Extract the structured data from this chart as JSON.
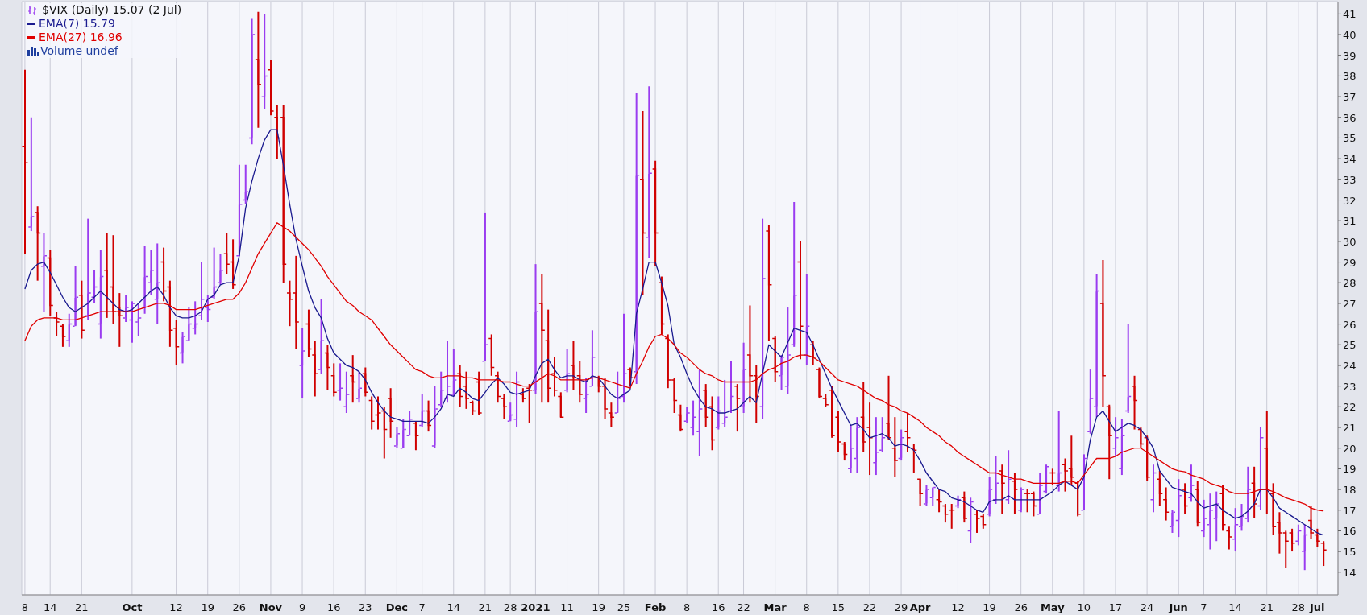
{
  "chart_data": {
    "type": "candlestick",
    "title": "$VIX (Daily) 15.07 (2 Jul)",
    "annotations": [
      "Volume undef"
    ],
    "legend": "top left",
    "grid": true,
    "ylim": [
      12.9,
      41.6
    ],
    "yticks": [
      14,
      15,
      16,
      17,
      18,
      19,
      20,
      21,
      22,
      23,
      24,
      25,
      26,
      27,
      28,
      29,
      30,
      31,
      32,
      33,
      34,
      35,
      36,
      37,
      38,
      39,
      40,
      41
    ],
    "categories": [
      "8",
      null,
      null,
      null,
      "14",
      null,
      null,
      null,
      null,
      "21",
      null,
      null,
      null,
      null,
      null,
      null,
      null,
      "Oct",
      null,
      null,
      null,
      null,
      null,
      null,
      "12",
      null,
      null,
      null,
      null,
      "19",
      null,
      null,
      null,
      null,
      "26",
      null,
      null,
      null,
      null,
      "Nov",
      null,
      null,
      null,
      null,
      "9",
      null,
      null,
      null,
      null,
      "16",
      null,
      null,
      null,
      null,
      "23",
      null,
      null,
      null,
      null,
      "Dec",
      null,
      null,
      null,
      "7",
      null,
      null,
      null,
      null,
      "14",
      null,
      null,
      null,
      null,
      "21",
      null,
      null,
      null,
      "28",
      null,
      null,
      null,
      "2021",
      null,
      null,
      null,
      null,
      "11",
      null,
      null,
      null,
      null,
      "19",
      null,
      null,
      null,
      "25",
      null,
      null,
      null,
      null,
      "Feb",
      null,
      null,
      null,
      null,
      "8",
      null,
      null,
      null,
      null,
      "16",
      null,
      null,
      null,
      "22",
      null,
      null,
      null,
      null,
      "Mar",
      null,
      null,
      null,
      null,
      "8",
      null,
      null,
      null,
      null,
      "15",
      null,
      null,
      null,
      null,
      "22",
      null,
      null,
      null,
      null,
      "29",
      null,
      null,
      "Apr",
      null,
      null,
      null,
      null,
      null,
      "12",
      null,
      null,
      null,
      null,
      "19",
      null,
      null,
      null,
      null,
      "26",
      null,
      null,
      null,
      null,
      "May",
      null,
      null,
      null,
      null,
      "10",
      null,
      null,
      null,
      null,
      "17",
      null,
      null,
      null,
      null,
      "24",
      null,
      null,
      null,
      null,
      "Jun",
      null,
      null,
      null,
      "7",
      null,
      null,
      null,
      null,
      "14",
      null,
      null,
      null,
      null,
      "21",
      null,
      null,
      null,
      null,
      "28",
      null,
      null,
      "Jul",
      null
    ],
    "ohlc": [
      [
        34.6,
        38.3,
        29.4,
        33.8
      ],
      [
        30.7,
        36.0,
        30.5,
        31.2
      ],
      [
        31.4,
        31.7,
        28.1,
        30.4
      ],
      [
        28.8,
        30.4,
        26.6,
        29.3
      ],
      [
        29.2,
        29.6,
        26.4,
        26.9
      ],
      [
        26.3,
        26.6,
        25.4,
        26.1
      ],
      [
        25.9,
        26.0,
        24.9,
        25.4
      ],
      [
        25.2,
        26.5,
        24.9,
        26.0
      ],
      [
        25.9,
        28.8,
        25.9,
        27.3
      ],
      [
        27.4,
        28.1,
        25.3,
        25.7
      ],
      [
        26.4,
        31.1,
        26.2,
        27.5
      ],
      [
        27.3,
        28.6,
        27.0,
        27.8
      ],
      [
        26.0,
        29.6,
        25.3,
        28.3
      ],
      [
        28.6,
        30.4,
        26.3,
        27.2
      ],
      [
        27.8,
        30.3,
        26.0,
        26.6
      ],
      [
        26.8,
        27.5,
        24.9,
        26.4
      ],
      [
        26.3,
        27.4,
        26.1,
        26.8
      ],
      [
        26.2,
        27.1,
        25.1,
        27.0
      ],
      [
        26.1,
        27.0,
        25.4,
        26.3
      ],
      [
        26.8,
        29.8,
        26.5,
        28.3
      ],
      [
        28.0,
        29.6,
        27.4,
        28.6
      ],
      [
        27.2,
        29.9,
        26.0,
        28.0
      ],
      [
        29.0,
        29.7,
        27.1,
        27.6
      ],
      [
        27.8,
        28.1,
        24.9,
        25.7
      ],
      [
        25.8,
        26.2,
        24.0,
        24.9
      ],
      [
        24.6,
        25.6,
        24.1,
        25.4
      ],
      [
        25.2,
        26.8,
        25.2,
        26.0
      ],
      [
        25.8,
        27.1,
        25.5,
        26.0
      ],
      [
        26.4,
        29.0,
        26.2,
        27.2
      ],
      [
        26.8,
        27.4,
        26.1,
        26.7
      ],
      [
        27.3,
        29.7,
        27.2,
        27.8
      ],
      [
        28.0,
        29.4,
        27.9,
        28.6
      ],
      [
        29.4,
        30.4,
        28.4,
        28.9
      ],
      [
        29.0,
        30.1,
        27.7,
        27.9
      ],
      [
        29.3,
        33.7,
        29.3,
        31.8
      ],
      [
        32.0,
        33.7,
        31.8,
        32.4
      ],
      [
        35.0,
        40.8,
        34.7,
        40.0
      ],
      [
        38.8,
        41.1,
        35.5,
        37.6
      ],
      [
        37.0,
        41.0,
        36.4,
        38.0
      ],
      [
        38.3,
        38.8,
        36.1,
        36.3
      ],
      [
        36.0,
        36.6,
        34.0,
        35.0
      ],
      [
        36.0,
        36.6,
        28.0,
        28.9
      ],
      [
        27.5,
        28.1,
        25.9,
        27.2
      ],
      [
        27.5,
        29.3,
        24.8,
        26.1
      ],
      [
        24.0,
        25.8,
        22.4,
        24.7
      ],
      [
        26.0,
        26.7,
        24.4,
        24.8
      ],
      [
        24.5,
        25.2,
        22.5,
        23.6
      ],
      [
        23.8,
        27.2,
        23.6,
        25.2
      ],
      [
        24.6,
        25.0,
        22.8,
        23.9
      ],
      [
        23.5,
        24.1,
        22.5,
        22.7
      ],
      [
        22.8,
        24.1,
        22.3,
        22.9
      ],
      [
        22.0,
        23.7,
        21.7,
        22.6
      ],
      [
        23.5,
        24.5,
        22.2,
        23.2
      ],
      [
        22.4,
        23.7,
        22.2,
        22.9
      ],
      [
        23.6,
        23.9,
        22.5,
        22.7
      ],
      [
        22.3,
        22.5,
        20.9,
        21.3
      ],
      [
        21.6,
        22.5,
        20.9,
        21.7
      ],
      [
        21.8,
        22.0,
        19.5,
        20.9
      ],
      [
        22.4,
        22.9,
        20.5,
        21.3
      ],
      [
        20.1,
        21.0,
        20.0,
        20.7
      ],
      [
        20.0,
        21.4,
        20.0,
        20.9
      ],
      [
        20.6,
        21.8,
        20.6,
        21.4
      ],
      [
        21.2,
        21.3,
        19.9,
        20.6
      ],
      [
        21.1,
        22.6,
        21.0,
        21.8
      ],
      [
        21.8,
        22.3,
        20.8,
        21.1
      ],
      [
        20.1,
        23.0,
        20.0,
        21.9
      ],
      [
        22.1,
        23.7,
        22.0,
        22.8
      ],
      [
        22.4,
        25.2,
        22.2,
        23.0
      ],
      [
        22.6,
        24.8,
        22.5,
        23.3
      ],
      [
        23.6,
        24.0,
        22.0,
        22.5
      ],
      [
        23.0,
        23.7,
        21.9,
        22.4
      ],
      [
        22.2,
        22.3,
        21.6,
        21.8
      ],
      [
        23.2,
        23.7,
        21.6,
        21.7
      ],
      [
        24.2,
        31.4,
        24.2,
        25.0
      ],
      [
        25.3,
        25.5,
        23.5,
        23.9
      ],
      [
        23.5,
        23.7,
        22.2,
        22.5
      ],
      [
        22.4,
        22.6,
        21.4,
        22.0
      ],
      [
        21.3,
        22.2,
        21.3,
        21.6
      ],
      [
        21.4,
        23.7,
        21.0,
        23.2
      ],
      [
        22.6,
        22.9,
        22.2,
        22.4
      ],
      [
        22.9,
        23.1,
        21.2,
        22.8
      ],
      [
        22.8,
        28.9,
        22.6,
        26.6
      ],
      [
        27.0,
        28.4,
        22.2,
        25.7
      ],
      [
        25.2,
        26.7,
        22.2,
        22.9
      ],
      [
        23.6,
        24.4,
        22.5,
        22.8
      ],
      [
        22.5,
        22.7,
        21.5,
        21.5
      ],
      [
        22.8,
        24.8,
        22.7,
        23.6
      ],
      [
        24.0,
        25.2,
        22.8,
        23.4
      ],
      [
        23.5,
        24.2,
        22.2,
        22.6
      ],
      [
        22.4,
        23.4,
        21.7,
        22.6
      ],
      [
        23.0,
        25.7,
        23.0,
        24.4
      ],
      [
        23.4,
        23.5,
        22.7,
        23.0
      ],
      [
        23.0,
        23.4,
        21.4,
        21.9
      ],
      [
        21.7,
        22.2,
        21.0,
        21.5
      ],
      [
        21.7,
        23.7,
        21.7,
        22.4
      ],
      [
        22.5,
        26.5,
        22.2,
        23.6
      ],
      [
        23.8,
        23.9,
        23.0,
        23.4
      ],
      [
        23.7,
        37.2,
        23.1,
        33.2
      ],
      [
        33.0,
        36.3,
        27.4,
        30.4
      ],
      [
        30.2,
        37.5,
        29.2,
        33.3
      ],
      [
        33.5,
        33.9,
        28.8,
        30.4
      ],
      [
        28.0,
        28.3,
        25.5,
        26.0
      ],
      [
        25.3,
        25.5,
        22.9,
        23.3
      ],
      [
        23.3,
        23.4,
        21.7,
        22.3
      ],
      [
        21.6,
        22.1,
        20.8,
        20.9
      ],
      [
        21.3,
        22.0,
        21.2,
        21.7
      ],
      [
        21.0,
        22.3,
        20.6,
        21.5
      ],
      [
        20.8,
        23.8,
        19.6,
        21.9
      ],
      [
        22.8,
        23.1,
        21.0,
        21.5
      ],
      [
        22.0,
        22.5,
        19.9,
        20.4
      ],
      [
        21.0,
        22.5,
        20.9,
        21.8
      ],
      [
        21.2,
        23.3,
        21.0,
        21.5
      ],
      [
        21.8,
        24.2,
        21.7,
        22.5
      ],
      [
        23.0,
        23.1,
        20.8,
        22.4
      ],
      [
        22.0,
        25.1,
        21.7,
        23.8
      ],
      [
        24.5,
        26.9,
        22.2,
        23.5
      ],
      [
        23.5,
        24.0,
        21.2,
        22.5
      ],
      [
        22.0,
        31.1,
        21.4,
        28.2
      ],
      [
        30.5,
        30.8,
        25.2,
        27.9
      ],
      [
        25.3,
        25.4,
        23.2,
        23.7
      ],
      [
        23.5,
        24.5,
        22.8,
        24.4
      ],
      [
        23.0,
        26.8,
        22.6,
        24.5
      ],
      [
        25.0,
        31.9,
        24.9,
        27.4
      ],
      [
        29.0,
        30.0,
        24.3,
        25.9
      ],
      [
        24.5,
        28.4,
        24.0,
        25.9
      ],
      [
        25.0,
        25.2,
        24.0,
        24.4
      ],
      [
        23.8,
        23.9,
        22.4,
        22.5
      ],
      [
        22.4,
        22.6,
        22.0,
        22.1
      ],
      [
        22.8,
        23.0,
        20.5,
        20.6
      ],
      [
        21.5,
        21.8,
        19.8,
        20.3
      ],
      [
        20.2,
        20.3,
        19.4,
        19.7
      ],
      [
        19.0,
        21.1,
        18.8,
        20.0
      ],
      [
        19.5,
        21.5,
        18.8,
        21.0
      ],
      [
        21.5,
        23.2,
        19.8,
        20.3
      ],
      [
        21.0,
        22.2,
        18.7,
        20.5
      ],
      [
        19.3,
        21.5,
        18.7,
        19.8
      ],
      [
        19.9,
        21.5,
        19.8,
        20.5
      ],
      [
        21.2,
        23.5,
        20.4,
        20.5
      ],
      [
        20.0,
        21.5,
        18.6,
        19.4
      ],
      [
        19.5,
        20.9,
        19.4,
        20.5
      ],
      [
        20.8,
        21.7,
        19.8,
        20.5
      ],
      [
        20.0,
        20.2,
        18.8,
        19.9
      ],
      [
        18.5,
        18.5,
        17.2,
        17.8
      ],
      [
        17.3,
        18.2,
        17.2,
        18.0
      ],
      [
        17.6,
        18.1,
        17.2,
        18.1
      ],
      [
        17.5,
        18.0,
        16.9,
        17.4
      ],
      [
        17.2,
        17.3,
        16.4,
        16.8
      ],
      [
        17.0,
        17.3,
        16.1,
        17.0
      ],
      [
        17.2,
        17.7,
        17.1,
        17.5
      ],
      [
        17.6,
        17.9,
        16.4,
        16.6
      ],
      [
        16.0,
        17.6,
        15.4,
        17.4
      ],
      [
        16.8,
        17.0,
        15.9,
        16.6
      ],
      [
        16.7,
        16.8,
        16.1,
        16.3
      ],
      [
        16.8,
        18.6,
        16.7,
        18.0
      ],
      [
        17.5,
        19.6,
        17.3,
        18.3
      ],
      [
        18.9,
        19.2,
        16.8,
        18.3
      ],
      [
        17.5,
        19.9,
        17.3,
        18.5
      ],
      [
        18.4,
        18.8,
        16.8,
        18.0
      ],
      [
        17.0,
        18.1,
        16.9,
        18.0
      ],
      [
        17.8,
        18.0,
        16.9,
        17.8
      ],
      [
        17.8,
        17.9,
        16.7,
        17.2
      ],
      [
        16.8,
        18.8,
        16.8,
        18.2
      ],
      [
        17.9,
        19.2,
        17.8,
        19.1
      ],
      [
        18.8,
        19.0,
        18.2,
        18.8
      ],
      [
        18.2,
        21.8,
        17.9,
        18.8
      ],
      [
        19.2,
        19.5,
        17.9,
        18.9
      ],
      [
        19.0,
        20.6,
        18.2,
        18.6
      ],
      [
        18.3,
        18.4,
        16.7,
        16.8
      ],
      [
        17.0,
        19.7,
        17.0,
        19.5
      ],
      [
        20.8,
        23.8,
        20.7,
        22.4
      ],
      [
        22.0,
        28.4,
        21.5,
        27.6
      ],
      [
        27.0,
        29.1,
        22.0,
        23.5
      ],
      [
        22.0,
        22.1,
        18.5,
        20.6
      ],
      [
        20.0,
        21.5,
        19.6,
        20.5
      ],
      [
        19.0,
        21.4,
        18.7,
        20.6
      ],
      [
        21.8,
        26.0,
        21.7,
        22.5
      ],
      [
        23.0,
        23.5,
        20.9,
        22.3
      ],
      [
        20.9,
        21.0,
        20.0,
        20.2
      ],
      [
        20.5,
        20.6,
        18.4,
        18.6
      ],
      [
        17.5,
        19.2,
        16.9,
        18.8
      ],
      [
        18.5,
        18.9,
        17.2,
        17.8
      ],
      [
        17.5,
        18.1,
        16.5,
        16.9
      ],
      [
        16.2,
        17.0,
        15.9,
        16.9
      ],
      [
        16.5,
        18.5,
        15.7,
        17.7
      ],
      [
        18.0,
        18.3,
        16.8,
        17.2
      ],
      [
        17.6,
        19.2,
        17.4,
        18.2
      ],
      [
        18.0,
        18.4,
        16.2,
        16.4
      ],
      [
        16.0,
        17.5,
        15.7,
        16.6
      ],
      [
        16.3,
        17.8,
        15.1,
        17.0
      ],
      [
        16.6,
        17.9,
        15.5,
        17.3
      ],
      [
        17.8,
        18.2,
        16.0,
        16.3
      ],
      [
        16.0,
        16.2,
        15.1,
        15.7
      ],
      [
        15.6,
        17.1,
        15.0,
        16.3
      ],
      [
        16.2,
        17.3,
        16.0,
        16.7
      ],
      [
        16.6,
        19.1,
        16.4,
        18.0
      ],
      [
        18.3,
        19.1,
        16.6,
        17.3
      ],
      [
        17.2,
        21.0,
        17.0,
        20.5
      ],
      [
        20.0,
        21.8,
        16.8,
        18.0
      ],
      [
        17.8,
        18.3,
        15.8,
        16.2
      ],
      [
        16.4,
        16.9,
        14.9,
        15.9
      ],
      [
        15.9,
        16.0,
        14.2,
        15.5
      ],
      [
        15.9,
        16.1,
        15.0,
        15.4
      ],
      [
        15.5,
        16.3,
        15.3,
        16.0
      ],
      [
        15.0,
        16.3,
        14.1,
        15.8
      ],
      [
        16.5,
        17.2,
        15.6,
        15.9
      ],
      [
        15.8,
        16.1,
        15.2,
        15.5
      ],
      [
        15.4,
        15.5,
        14.3,
        15.07
      ]
    ],
    "colors": [
      "#d00000",
      "#9a3cf0",
      "#d00000",
      "#9a3cf0",
      "#d00000",
      "#d00000",
      "#d00000",
      "#9a3cf0",
      "#9a3cf0",
      "#d00000",
      "#9a3cf0",
      "#9a3cf0",
      "#9a3cf0",
      "#d00000",
      "#d00000",
      "#d00000",
      "#9a3cf0",
      "#9a3cf0",
      "#9a3cf0",
      "#9a3cf0",
      "#9a3cf0",
      "#9a3cf0",
      "#d00000",
      "#d00000",
      "#d00000",
      "#9a3cf0",
      "#9a3cf0",
      "#9a3cf0",
      "#9a3cf0",
      "#9a3cf0",
      "#9a3cf0",
      "#9a3cf0",
      "#d00000",
      "#d00000",
      "#9a3cf0",
      "#9a3cf0",
      "#9a3cf0",
      "#d00000",
      "#9a3cf0",
      "#d00000",
      "#d00000",
      "#d00000",
      "#d00000",
      "#d00000",
      "#9a3cf0",
      "#d00000",
      "#d00000",
      "#9a3cf0",
      "#d00000",
      "#d00000",
      "#9a3cf0",
      "#9a3cf0",
      "#d00000",
      "#9a3cf0",
      "#d00000",
      "#d00000",
      "#d00000",
      "#d00000",
      "#d00000",
      "#9a3cf0",
      "#9a3cf0",
      "#9a3cf0",
      "#d00000",
      "#9a3cf0",
      "#d00000",
      "#9a3cf0",
      "#9a3cf0",
      "#9a3cf0",
      "#9a3cf0",
      "#d00000",
      "#d00000",
      "#d00000",
      "#d00000",
      "#9a3cf0",
      "#d00000",
      "#d00000",
      "#d00000",
      "#9a3cf0",
      "#9a3cf0",
      "#d00000",
      "#d00000",
      "#9a3cf0",
      "#d00000",
      "#d00000",
      "#d00000",
      "#d00000",
      "#9a3cf0",
      "#d00000",
      "#d00000",
      "#9a3cf0",
      "#9a3cf0",
      "#d00000",
      "#d00000",
      "#d00000",
      "#9a3cf0",
      "#9a3cf0",
      "#d00000",
      "#9a3cf0",
      "#d00000",
      "#9a3cf0",
      "#d00000",
      "#d00000",
      "#d00000",
      "#d00000",
      "#d00000",
      "#9a3cf0",
      "#9a3cf0",
      "#9a3cf0",
      "#d00000",
      "#d00000",
      "#9a3cf0",
      "#9a3cf0",
      "#9a3cf0",
      "#d00000",
      "#9a3cf0",
      "#d00000",
      "#d00000",
      "#9a3cf0",
      "#d00000",
      "#d00000",
      "#9a3cf0",
      "#9a3cf0",
      "#9a3cf0",
      "#d00000",
      "#9a3cf0",
      "#d00000",
      "#d00000",
      "#d00000",
      "#d00000",
      "#d00000",
      "#d00000",
      "#9a3cf0",
      "#9a3cf0",
      "#d00000",
      "#d00000",
      "#9a3cf0",
      "#9a3cf0",
      "#d00000",
      "#d00000",
      "#9a3cf0",
      "#d00000",
      "#d00000",
      "#d00000",
      "#9a3cf0",
      "#9a3cf0",
      "#d00000",
      "#d00000",
      "#d00000",
      "#9a3cf0",
      "#d00000",
      "#9a3cf0",
      "#d00000",
      "#d00000",
      "#9a3cf0",
      "#9a3cf0",
      "#d00000",
      "#9a3cf0",
      "#d00000",
      "#9a3cf0",
      "#d00000",
      "#d00000",
      "#9a3cf0",
      "#9a3cf0",
      "#d00000",
      "#9a3cf0",
      "#d00000",
      "#d00000",
      "#d00000",
      "#9a3cf0",
      "#9a3cf0",
      "#9a3cf0",
      "#d00000",
      "#d00000",
      "#9a3cf0",
      "#9a3cf0",
      "#9a3cf0",
      "#d00000",
      "#d00000",
      "#d00000",
      "#9a3cf0",
      "#d00000",
      "#d00000",
      "#9a3cf0",
      "#9a3cf0",
      "#d00000",
      "#9a3cf0",
      "#d00000",
      "#9a3cf0",
      "#9a3cf0",
      "#9a3cf0",
      "#d00000",
      "#d00000",
      "#9a3cf0",
      "#9a3cf0",
      "#9a3cf0",
      "#d00000",
      "#9a3cf0",
      "#d00000",
      "#d00000",
      "#d00000",
      "#d00000",
      "#d00000",
      "#9a3cf0",
      "#9a3cf0",
      "#d00000",
      "#d00000",
      "#d00000"
    ],
    "series": [
      {
        "type": "line",
        "name": "EMA(7) 15.79",
        "color": "#1a1a8f",
        "values": [
          27.7,
          28.6,
          28.9,
          29.0,
          28.5,
          27.9,
          27.3,
          26.8,
          26.6,
          26.8,
          27.0,
          27.3,
          27.6,
          27.3,
          27.0,
          26.7,
          26.6,
          26.7,
          27.0,
          27.3,
          27.6,
          27.8,
          27.4,
          26.8,
          26.4,
          26.3,
          26.3,
          26.4,
          26.6,
          27.2,
          27.4,
          27.9,
          28.0,
          28.0,
          29.3,
          31.6,
          32.9,
          34.0,
          34.9,
          35.4,
          35.4,
          33.7,
          31.8,
          30.1,
          28.8,
          27.6,
          26.8,
          26.3,
          25.3,
          24.6,
          24.3,
          24.0,
          23.9,
          23.7,
          23.3,
          22.7,
          22.2,
          21.8,
          21.5,
          21.4,
          21.3,
          21.3,
          21.3,
          21.3,
          21.2,
          21.5,
          21.9,
          22.6,
          22.5,
          22.9,
          22.7,
          22.4,
          22.3,
          22.7,
          23.1,
          23.4,
          23.1,
          22.7,
          22.6,
          22.7,
          22.8,
          23.5,
          24.1,
          24.3,
          23.8,
          23.4,
          23.5,
          23.5,
          23.3,
          23.2,
          23.5,
          23.4,
          23.0,
          22.6,
          22.4,
          22.6,
          22.8,
          26.5,
          27.7,
          29.0,
          29.0,
          28.0,
          26.9,
          25.0,
          24.4,
          23.6,
          22.9,
          22.4,
          22.0,
          21.9,
          21.7,
          21.7,
          21.8,
          21.9,
          22.2,
          22.5,
          22.2,
          23.6,
          25.0,
          24.7,
          24.4,
          25.1,
          25.8,
          25.7,
          25.6,
          25.0,
          24.3,
          23.6,
          22.9,
          22.3,
          21.7,
          21.1,
          21.2,
          20.9,
          20.5,
          20.6,
          20.7,
          20.5,
          20.1,
          20.2,
          20.1,
          19.9,
          19.4,
          18.8,
          18.4,
          18.0,
          17.9,
          17.6,
          17.5,
          17.4,
          17.2,
          17.0,
          16.9,
          17.4,
          17.5,
          17.5,
          17.7,
          17.5,
          17.5,
          17.5,
          17.5,
          17.5,
          17.7,
          17.9,
          18.2,
          18.4,
          18.2,
          18.0,
          18.6,
          20.4,
          21.5,
          21.8,
          21.3,
          20.8,
          21.0,
          21.2,
          21.1,
          20.9,
          20.5,
          20.0,
          18.9,
          18.5,
          18.1,
          18.0,
          17.9,
          17.8,
          17.4,
          17.1,
          17.2,
          17.3,
          17.0,
          16.8,
          16.6,
          16.7,
          16.95,
          17.3,
          18.0,
          18.0,
          17.6,
          17.1,
          16.9,
          16.7,
          16.5,
          16.3,
          16.1,
          15.9,
          15.79
        ]
      },
      {
        "type": "line",
        "name": "EMA(27) 16.96",
        "color": "#e00000",
        "values": [
          25.2,
          25.9,
          26.2,
          26.3,
          26.3,
          26.3,
          26.2,
          26.2,
          26.2,
          26.3,
          26.4,
          26.5,
          26.6,
          26.6,
          26.6,
          26.6,
          26.6,
          26.6,
          26.7,
          26.8,
          26.9,
          27.0,
          27.0,
          26.9,
          26.7,
          26.7,
          26.7,
          26.7,
          26.8,
          26.9,
          27.0,
          27.1,
          27.2,
          27.2,
          27.5,
          28.0,
          28.7,
          29.4,
          29.9,
          30.4,
          30.9,
          30.7,
          30.5,
          30.2,
          29.9,
          29.6,
          29.2,
          28.8,
          28.3,
          27.9,
          27.5,
          27.1,
          26.9,
          26.6,
          26.4,
          26.2,
          25.8,
          25.4,
          25.0,
          24.7,
          24.4,
          24.1,
          23.8,
          23.7,
          23.5,
          23.4,
          23.4,
          23.5,
          23.5,
          23.5,
          23.4,
          23.4,
          23.3,
          23.3,
          23.3,
          23.3,
          23.2,
          23.2,
          23.1,
          23.0,
          23.0,
          23.2,
          23.4,
          23.6,
          23.5,
          23.3,
          23.3,
          23.3,
          23.3,
          23.3,
          23.4,
          23.4,
          23.3,
          23.2,
          23.1,
          23.0,
          22.9,
          23.6,
          24.2,
          24.9,
          25.4,
          25.5,
          25.3,
          25.0,
          24.6,
          24.4,
          24.1,
          23.8,
          23.6,
          23.5,
          23.3,
          23.2,
          23.2,
          23.2,
          23.2,
          23.2,
          23.3,
          23.6,
          23.8,
          23.9,
          24.1,
          24.2,
          24.4,
          24.5,
          24.5,
          24.4,
          24.2,
          23.9,
          23.6,
          23.3,
          23.2,
          23.1,
          23.0,
          22.8,
          22.6,
          22.4,
          22.3,
          22.1,
          22.0,
          21.8,
          21.7,
          21.5,
          21.3,
          21.0,
          20.8,
          20.6,
          20.3,
          20.1,
          19.8,
          19.6,
          19.4,
          19.2,
          19.0,
          18.8,
          18.8,
          18.7,
          18.6,
          18.5,
          18.5,
          18.4,
          18.3,
          18.3,
          18.3,
          18.3,
          18.3,
          18.4,
          18.4,
          18.3,
          18.7,
          19.1,
          19.5,
          19.5,
          19.5,
          19.6,
          19.8,
          19.9,
          20.0,
          20.0,
          19.8,
          19.6,
          19.4,
          19.2,
          19.0,
          18.9,
          18.85,
          18.7,
          18.6,
          18.5,
          18.3,
          18.2,
          18.1,
          17.9,
          17.8,
          17.8,
          17.8,
          17.9,
          18.0,
          18.0,
          17.9,
          17.75,
          17.6,
          17.5,
          17.4,
          17.3,
          17.1,
          17.0,
          16.96
        ]
      }
    ]
  }
}
